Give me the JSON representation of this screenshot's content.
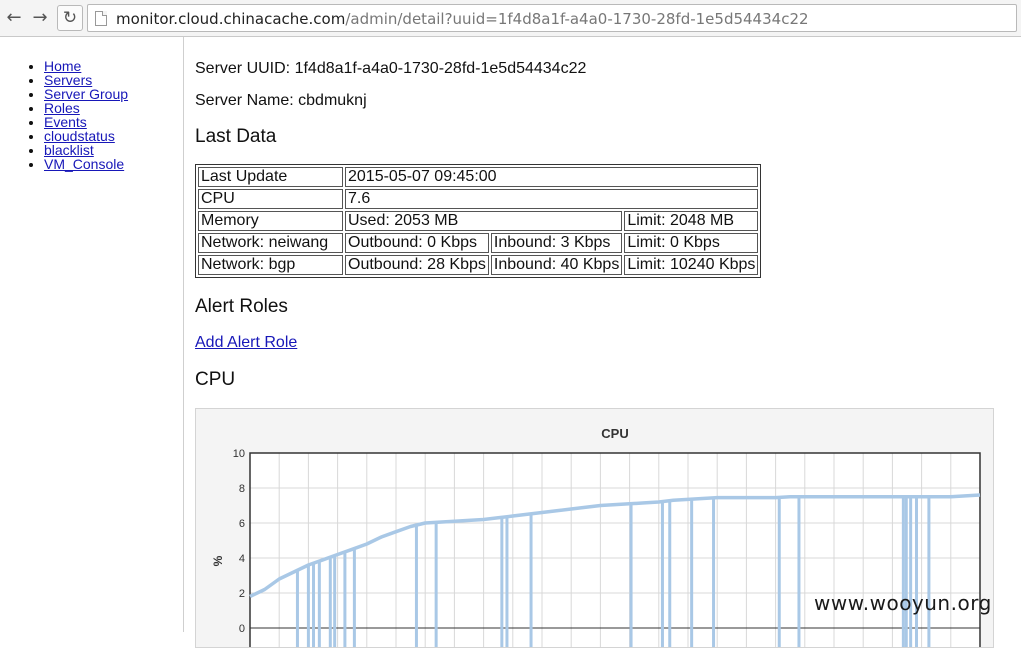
{
  "browser": {
    "url_domain": "monitor.cloud.chinacache.com",
    "url_path": "/admin/detail?uuid=1f4d8a1f-a4a0-1730-28fd-1e5d54434c22"
  },
  "sidebar": {
    "items": [
      {
        "label": "Home"
      },
      {
        "label": "Servers"
      },
      {
        "label": "Server Group"
      },
      {
        "label": "Roles"
      },
      {
        "label": "Events"
      },
      {
        "label": "cloudstatus"
      },
      {
        "label": "blacklist"
      },
      {
        "label": "VM_Console"
      }
    ]
  },
  "server": {
    "uuid_line": "Server UUID: 1f4d8a1f-a4a0-1730-28fd-1e5d54434c22",
    "name_line": "Server Name: cbdmuknj"
  },
  "sections": {
    "last_data": "Last Data",
    "alert_roles": "Alert Roles",
    "add_alert_role": "Add Alert Role",
    "cpu": "CPU"
  },
  "table": {
    "last_update": {
      "label": "Last Update",
      "value": "2015-05-07 09:45:00"
    },
    "cpu": {
      "label": "CPU",
      "value": "7.6"
    },
    "memory": {
      "label": "Memory",
      "used": "Used: 2053 MB",
      "limit": "Limit: 2048 MB"
    },
    "neiwang": {
      "label": "Network: neiwang",
      "outbound": "Outbound: 0 Kbps",
      "inbound": "Inbound: 3 Kbps",
      "limit": "Limit: 0 Kbps"
    },
    "bgp": {
      "label": "Network: bgp",
      "outbound": "Outbound: 28 Kbps",
      "inbound": "Inbound: 40 Kbps",
      "limit": "Limit: 10240 Kbps"
    }
  },
  "chart_data": {
    "type": "line",
    "title": "CPU",
    "xlabel": "",
    "ylabel": "%",
    "ylim": [
      0,
      10
    ],
    "yticks": [
      "0",
      "2",
      "4",
      "6",
      "8",
      "10"
    ],
    "grid": true,
    "color": "#a9c8e6",
    "x": [
      0,
      2,
      4,
      6,
      8,
      10,
      12,
      14,
      16,
      18,
      20,
      22,
      24,
      26,
      28,
      30,
      32,
      34,
      36,
      38,
      40,
      42,
      44,
      46,
      48,
      50,
      52,
      54,
      56,
      58,
      60,
      62,
      64,
      66,
      68,
      70,
      72,
      74,
      76,
      78,
      80,
      82,
      84,
      86,
      88,
      90,
      92,
      94,
      96,
      98,
      100
    ],
    "y": [
      1.8,
      2.2,
      2.8,
      3.2,
      3.6,
      3.9,
      4.2,
      4.5,
      4.8,
      5.2,
      5.5,
      5.8,
      6.0,
      6.05,
      6.1,
      6.15,
      6.2,
      6.3,
      6.4,
      6.5,
      6.6,
      6.7,
      6.8,
      6.9,
      7.0,
      7.05,
      7.1,
      7.15,
      7.2,
      7.3,
      7.35,
      7.4,
      7.45,
      7.45,
      7.45,
      7.45,
      7.45,
      7.5,
      7.5,
      7.5,
      7.5,
      7.5,
      7.5,
      7.5,
      7.5,
      7.5,
      7.5,
      7.5,
      7.5,
      7.55,
      7.6
    ],
    "dips_x": [
      6.5,
      8,
      8.7,
      9.5,
      11,
      11.6,
      13,
      14.3,
      22.8,
      25.5,
      34.5,
      35.2,
      38.5,
      52.2,
      56.5,
      57.5,
      60.5,
      63.5,
      72.5,
      75.2,
      89.5,
      89.9,
      90.5,
      91.3,
      93
    ]
  },
  "watermark": "www.wooyun.org"
}
